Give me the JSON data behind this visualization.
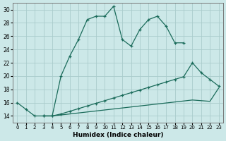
{
  "title": "",
  "xlabel": "Humidex (Indice chaleur)",
  "bg_color": "#cce8e8",
  "grid_color": "#aacccc",
  "line_color": "#1a6b5a",
  "xlim": [
    -0.5,
    23.5
  ],
  "ylim": [
    13.0,
    31.0
  ],
  "yticks": [
    14,
    16,
    18,
    20,
    22,
    24,
    26,
    28,
    30
  ],
  "xticks": [
    0,
    1,
    2,
    3,
    4,
    5,
    6,
    7,
    8,
    9,
    10,
    11,
    12,
    13,
    14,
    15,
    16,
    17,
    18,
    19,
    20,
    21,
    22,
    23
  ],
  "line1_x": [
    0,
    1,
    2,
    3,
    4,
    5,
    6,
    7,
    8,
    9,
    10,
    11,
    12,
    13,
    14,
    15,
    16,
    17,
    18,
    19
  ],
  "line1_y": [
    16,
    15,
    14,
    14,
    14,
    20,
    23,
    25.5,
    28.5,
    29,
    29,
    30.5,
    25.5,
    24.5,
    27,
    28.5,
    29,
    27.5,
    25,
    25
  ],
  "line2_x": [
    3,
    4,
    5,
    6,
    7,
    8,
    9,
    10,
    11,
    12,
    13,
    14,
    15,
    16,
    17,
    18,
    19,
    20,
    21,
    22,
    23
  ],
  "line2_y": [
    14,
    14,
    14.3,
    14.7,
    15.1,
    15.5,
    15.9,
    16.3,
    16.7,
    17.1,
    17.5,
    17.9,
    18.3,
    18.7,
    19.1,
    19.5,
    19.9,
    22.0,
    20.5,
    19.5,
    18.5
  ],
  "line3_x": [
    3,
    4,
    5,
    6,
    7,
    8,
    9,
    10,
    11,
    12,
    13,
    14,
    15,
    16,
    17,
    18,
    19,
    20,
    21,
    22,
    23
  ],
  "line3_y": [
    14,
    14,
    14.15,
    14.3,
    14.45,
    14.6,
    14.75,
    14.9,
    15.05,
    15.2,
    15.35,
    15.5,
    15.65,
    15.8,
    15.95,
    16.1,
    16.25,
    16.4,
    16.3,
    16.2,
    18.2
  ]
}
